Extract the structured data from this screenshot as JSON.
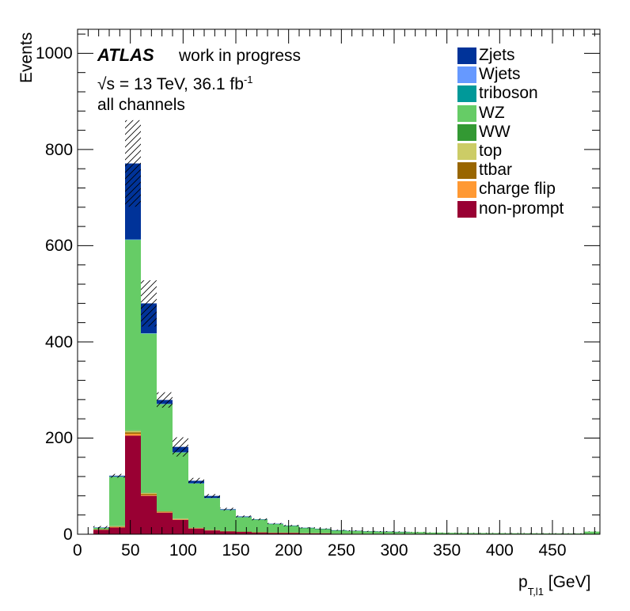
{
  "chart_data": {
    "type": "bar",
    "stacked": true,
    "title": "",
    "xlabel": "[GeV]",
    "xlabel_var": "p",
    "xlabel_sub": "T,l1",
    "ylabel": "Events",
    "xlim": [
      0,
      495
    ],
    "ylim": [
      0,
      1050
    ],
    "xticks": [
      "0",
      "50",
      "100",
      "150",
      "200",
      "250",
      "300",
      "350",
      "400",
      "450"
    ],
    "xtick_values": [
      0,
      50,
      100,
      150,
      200,
      250,
      300,
      350,
      400,
      450
    ],
    "yticks": [
      "0",
      "200",
      "400",
      "600",
      "800",
      "1000"
    ],
    "ytick_values": [
      0,
      200,
      400,
      600,
      800,
      1000
    ],
    "bin_edges": [
      15,
      30,
      45,
      60,
      75,
      90,
      105,
      120,
      135,
      150,
      165,
      180,
      195,
      210,
      225,
      240,
      255,
      270,
      285,
      300,
      315,
      330,
      345,
      360,
      375,
      390,
      405,
      420,
      435,
      450,
      465,
      480,
      495
    ],
    "series": [
      {
        "name": "non-prompt",
        "color": "#990033",
        "values": [
          9,
          14,
          205,
          80,
          45,
          30,
          12,
          8,
          6,
          5,
          4,
          3,
          3,
          2,
          2,
          1,
          1,
          1,
          1,
          1,
          1,
          0.5,
          0.5,
          0.5,
          0.5,
          0.5,
          0.5,
          0.5,
          0.5,
          0.5,
          0.5,
          0.5
        ]
      },
      {
        "name": "charge flip",
        "color": "#ff9933",
        "values": [
          0.5,
          1,
          4,
          2,
          1,
          1,
          0.5,
          0.5,
          0.3,
          0.3,
          0.2,
          0.2,
          0.2,
          0.1,
          0.1,
          0.1,
          0.1,
          0,
          0,
          0,
          0,
          0,
          0,
          0,
          0,
          0,
          0,
          0,
          0,
          0,
          0,
          0
        ]
      },
      {
        "name": "ttbar",
        "color": "#996600",
        "values": [
          0.5,
          1,
          3,
          2,
          1,
          0.5,
          0.5,
          0.3,
          0.2,
          0.2,
          0.1,
          0.1,
          0.1,
          0,
          0,
          0,
          0,
          0,
          0,
          0,
          0,
          0,
          0,
          0,
          0,
          0,
          0,
          0,
          0,
          0,
          0,
          0
        ]
      },
      {
        "name": "top",
        "color": "#cccc66",
        "values": [
          0.5,
          1,
          3,
          2,
          1,
          1,
          0.5,
          0.3,
          0.2,
          0.2,
          0.1,
          0.1,
          0.1,
          0,
          0,
          0,
          0,
          0,
          0,
          0,
          0,
          0,
          0,
          0,
          0,
          0,
          0,
          0,
          0,
          0,
          0,
          0
        ]
      },
      {
        "name": "WW",
        "color": "#339933",
        "values": [
          0.2,
          0.5,
          1,
          1,
          0.5,
          0.5,
          0.3,
          0.2,
          0.1,
          0.1,
          0.1,
          0,
          0,
          0,
          0,
          0,
          0,
          0,
          0,
          0,
          0,
          0,
          0,
          0,
          0,
          0,
          0,
          0,
          0,
          0,
          0,
          0
        ]
      },
      {
        "name": "WZ",
        "color": "#66cc66",
        "values": [
          3,
          102,
          396,
          330,
          222,
          137,
          92,
          66,
          44,
          30,
          26,
          18,
          14,
          11,
          9,
          7,
          6,
          5,
          4.5,
          4,
          3.5,
          3,
          2.5,
          2.2,
          2,
          1.8,
          1.6,
          1.5,
          1.3,
          1.2,
          1.1,
          5
        ]
      },
      {
        "name": "triboson",
        "color": "#009999",
        "values": [
          0.1,
          0.2,
          0.5,
          0.5,
          0.4,
          0.3,
          0.2,
          0.2,
          0.2,
          0.1,
          0.1,
          0.1,
          0.1,
          0.1,
          0.1,
          0.1,
          0,
          0,
          0,
          0,
          0,
          0,
          0,
          0,
          0,
          0,
          0,
          0,
          0,
          0,
          0,
          0
        ]
      },
      {
        "name": "Wjets",
        "color": "#6699ff",
        "values": [
          0.1,
          0.3,
          0.5,
          0.5,
          0.3,
          0.3,
          0.2,
          0.1,
          0.1,
          0.1,
          0,
          0,
          0,
          0,
          0,
          0,
          0,
          0,
          0,
          0,
          0,
          0,
          0,
          0,
          0,
          0,
          0,
          0,
          0,
          0,
          0,
          0
        ]
      },
      {
        "name": "Zjets",
        "color": "#003399",
        "values": [
          0.2,
          1.5,
          158,
          62,
          8,
          11,
          5,
          4,
          1,
          1,
          0.5,
          0.5,
          0.5,
          0.3,
          0.2,
          0.2,
          0.2,
          0.1,
          0.1,
          0.1,
          0,
          0,
          0,
          0,
          0,
          0,
          0,
          0,
          0,
          0,
          0,
          0
        ]
      }
    ],
    "uncertainty": [
      3,
      4,
      90,
      48,
      16,
      20,
      6,
      4,
      3,
      2,
      2,
      1.5,
      1.5,
      1,
      1,
      1,
      1,
      1,
      1,
      1,
      0.5,
      0.5,
      0.5,
      0.5,
      0.5,
      0.5,
      0.5,
      0.5,
      0.5,
      0.5,
      0.5,
      0.5
    ],
    "legend_position": "top-right"
  },
  "annotations": {
    "atlas": "ATLAS",
    "status": "work in progress",
    "sqrt": "√s",
    "energy": " = 13 TeV, 36.1 fb",
    "lumi_exp": "-1",
    "channel": "all channels"
  },
  "legend": [
    {
      "label": "Zjets",
      "color": "#003399"
    },
    {
      "label": "Wjets",
      "color": "#6699ff"
    },
    {
      "label": "triboson",
      "color": "#009999"
    },
    {
      "label": "WZ",
      "color": "#66cc66"
    },
    {
      "label": "WW",
      "color": "#339933"
    },
    {
      "label": "top",
      "color": "#cccc66"
    },
    {
      "label": "ttbar",
      "color": "#996600"
    },
    {
      "label": "charge flip",
      "color": "#ff9933"
    },
    {
      "label": "non-prompt",
      "color": "#990033"
    }
  ]
}
